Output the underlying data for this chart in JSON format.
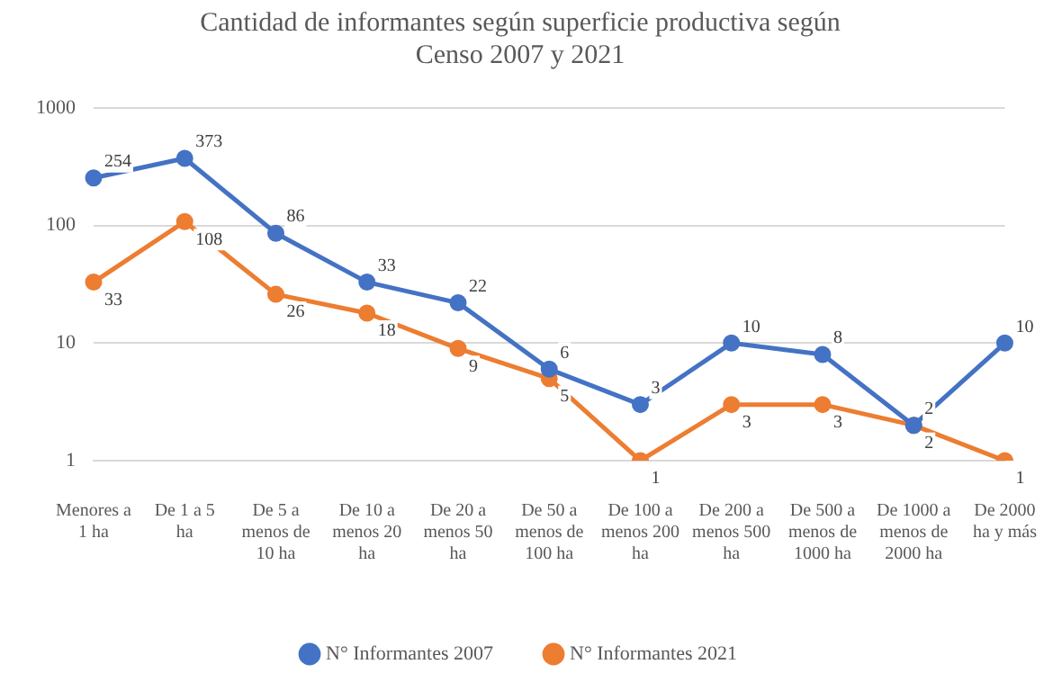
{
  "chart_data": {
    "type": "line",
    "title": "Cantidad de informantes según superficie productiva según Censo 2007 y 2021",
    "categories": [
      "Menores a 1 ha",
      "De 1 a 5 ha",
      "De 5 a menos de 10 ha",
      "De 10 a menos 20 ha",
      "De 20 a menos 50 ha",
      "De 50 a menos de 100 ha",
      "De 100 a menos 200 ha",
      "De 200 a menos 500 ha",
      "De 500 a menos de 1000 ha",
      "De 1000 a menos de 2000 ha",
      "De 2000 ha y más"
    ],
    "series": [
      {
        "name": "N° Informantes 2007",
        "color": "#4472c4",
        "values": [
          254,
          373,
          86,
          33,
          22,
          6,
          3,
          10,
          8,
          2,
          10
        ]
      },
      {
        "name": "N° Informantes 2021",
        "color": "#ed7d31",
        "values": [
          33,
          108,
          26,
          18,
          9,
          5,
          1,
          3,
          3,
          2,
          1
        ]
      }
    ],
    "log": "y",
    "ylim": [
      1,
      1000
    ],
    "yticks": [
      1,
      10,
      100,
      1000
    ],
    "grid": "y",
    "legend": "bottom",
    "marker": "circle",
    "line_style": "solid",
    "data_labels": true
  }
}
